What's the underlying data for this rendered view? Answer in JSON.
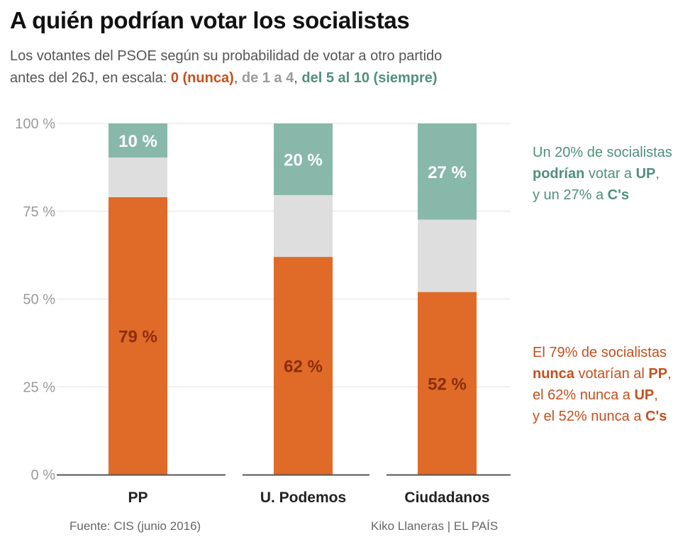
{
  "title": "A quién podrían votar los socialistas",
  "subtitle": {
    "line1": "Los votantes del PSOE según su probabilidad de votar a otro partido",
    "line2_prefix": "antes del 26J, en escala: ",
    "scale_never": "0 (nunca)",
    "sep1": ", ",
    "scale_mid": "de 1 a 4",
    "sep2": ", ",
    "scale_always": "del 5 al 10 (siempre)"
  },
  "colors": {
    "never": "#e06a28",
    "mid": "#dedede",
    "always": "#88b8aa",
    "never_label": "#8a2e0d",
    "always_label": "#ffffff",
    "note_green": "#4f8f7e",
    "note_orange": "#c5501d"
  },
  "chart_data": {
    "type": "bar",
    "stacked": true,
    "normalized": true,
    "categories": [
      "PP",
      "U. Podemos",
      "Ciudadanos"
    ],
    "series": [
      {
        "name": "0 (nunca)",
        "values": [
          79,
          62,
          52
        ]
      },
      {
        "name": "de 1 a 4",
        "values": [
          11.3,
          17.6,
          20.6
        ]
      },
      {
        "name": "del 5 al 10 (siempre)",
        "values": [
          9.7,
          20.4,
          27.4
        ]
      }
    ],
    "labels_never": [
      "79 %",
      "62 %",
      "52 %"
    ],
    "labels_always": [
      "10 %",
      "20 %",
      "27 %"
    ],
    "ylim": [
      0,
      100
    ],
    "yticks": [
      0,
      25,
      50,
      75,
      100
    ],
    "ytick_labels": [
      "0 %",
      "25 %",
      "50 %",
      "75 %",
      "100 %"
    ],
    "grid": true
  },
  "notes": {
    "green": {
      "l1": "Un 20% de socialistas",
      "l2_b": "podrían",
      "l2_t": " votar a ",
      "l2_b2": "UP",
      "l2_end": ",",
      "l3_t": "y un 27% a ",
      "l3_b": "C's"
    },
    "orange": {
      "l1": "El 79% de socialistas",
      "l2_b": "nunca",
      "l2_t": " votarían al ",
      "l2_b2": "PP",
      "l2_end": ",",
      "l3_t": "el 62% nunca a ",
      "l3_b": "UP",
      "l3_end": ",",
      "l4_t": "y el 52% nunca a ",
      "l4_b": "C's"
    }
  },
  "footer": {
    "source": "Fuente: CIS (junio 2016)",
    "credit": "Kiko Llaneras  |  EL PAÍS"
  }
}
